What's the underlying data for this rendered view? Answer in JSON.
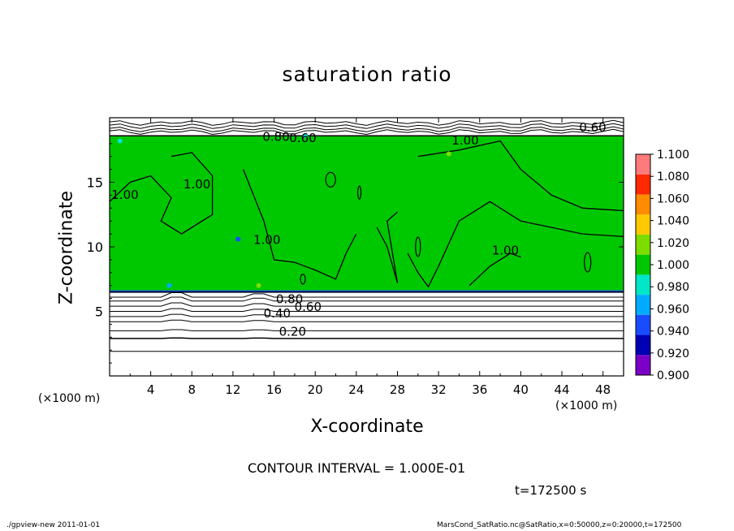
{
  "title": "saturation ratio",
  "xlabel": "X-coordinate",
  "ylabel": "Z-coordinate",
  "x_unit_left": "(×1000 m)",
  "x_unit_right": "(×1000 m)",
  "contour_interval_text": "CONTOUR INTERVAL = 1.000E-01",
  "time_text": "t=172500 s",
  "footer_left": "./gpview-new   2011-01-01",
  "footer_right": "MarsCond_SatRatio.nc@SatRatio,x=0:50000,z=0:20000,t=172500",
  "chart_data": {
    "type": "heatmap",
    "title": "saturation ratio",
    "xlabel": "X-coordinate",
    "ylabel": "Z-coordinate",
    "xlim": [
      0,
      50
    ],
    "ylim": [
      0,
      20
    ],
    "x_ticks": [
      4,
      8,
      12,
      16,
      20,
      24,
      28,
      32,
      36,
      40,
      44,
      48
    ],
    "y_ticks": [
      5,
      10,
      15
    ],
    "colorbar": {
      "levels": [
        0.9,
        0.92,
        0.94,
        0.96,
        0.98,
        1.0,
        1.02,
        1.04,
        1.06,
        1.08,
        1.1
      ],
      "labels": [
        "1.100",
        "1.080",
        "1.060",
        "1.040",
        "1.020",
        "1.000",
        "0.980",
        "0.960",
        "0.940",
        "0.920",
        "0.900"
      ],
      "colors": [
        "#7a00c8",
        "#0000b4",
        "#1a4cff",
        "#00aaff",
        "#00e6c8",
        "#00c800",
        "#7ddc00",
        "#ffc800",
        "#ff8c00",
        "#ff2800",
        "#ff7a7a"
      ]
    },
    "saturated_layer": {
      "z_bottom": 6.5,
      "z_top": 18.6,
      "value_range": "1.000-1.020"
    },
    "contour_labels": [
      {
        "text": "1.00",
        "x": 1.5,
        "z": 14.0
      },
      {
        "text": "1.00",
        "x": 8.5,
        "z": 14.8
      },
      {
        "text": "1.00",
        "x": 15.3,
        "z": 10.5
      },
      {
        "text": "1.00",
        "x": 38.5,
        "z": 9.7
      },
      {
        "text": "1.00",
        "x": 34.6,
        "z": 18.2
      },
      {
        "text": "0.60",
        "x": 47.0,
        "z": 19.2
      },
      {
        "text": "0.60",
        "x": 18.8,
        "z": 18.4
      },
      {
        "text": "0.80",
        "x": 16.2,
        "z": 18.5
      },
      {
        "text": "0.80",
        "x": 17.5,
        "z": 5.9
      },
      {
        "text": "0.60",
        "x": 19.3,
        "z": 5.3
      },
      {
        "text": "0.40",
        "x": 16.3,
        "z": 4.8
      },
      {
        "text": "0.20",
        "x": 17.8,
        "z": 3.4
      }
    ]
  }
}
